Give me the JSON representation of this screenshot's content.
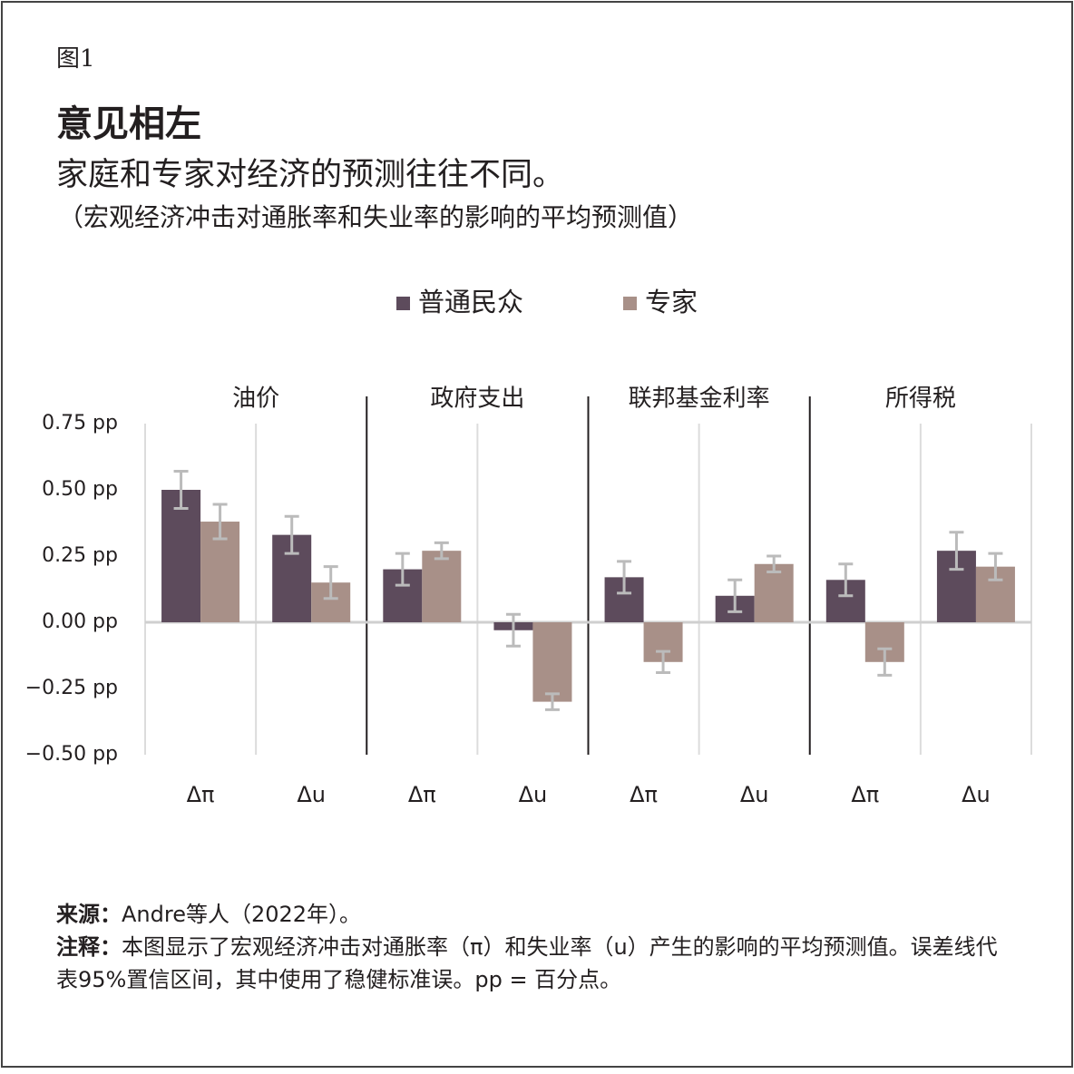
{
  "chart_data": {
    "type": "bar",
    "figure_label": "图1",
    "title": "意见相左",
    "subtitle": "家庭和专家对经济的预测往往不同。",
    "subtitle2": "（宏观经济冲击对通胀率和失业率的影响的平均预测值）",
    "groups": [
      "油价",
      "政府支出",
      "联邦基金利率",
      "所得税"
    ],
    "categories": [
      "Δπ",
      "Δu",
      "Δπ",
      "Δu",
      "Δπ",
      "Δu",
      "Δπ",
      "Δu"
    ],
    "series": [
      {
        "name": "普通民众",
        "color": "#5d4b5c",
        "values": [
          0.5,
          0.33,
          0.2,
          -0.03,
          0.17,
          0.1,
          0.16,
          0.27
        ],
        "errors": [
          0.07,
          0.07,
          0.06,
          0.06,
          0.06,
          0.06,
          0.06,
          0.07
        ]
      },
      {
        "name": "专家",
        "color": "#a89088",
        "values": [
          0.38,
          0.15,
          0.27,
          -0.3,
          -0.15,
          0.22,
          -0.15,
          0.21
        ],
        "errors": [
          0.065,
          0.06,
          0.03,
          0.03,
          0.04,
          0.03,
          0.05,
          0.05
        ]
      }
    ],
    "error_color": "#bbbbbb",
    "ylim": [
      -0.5,
      0.75
    ],
    "yticks": [
      {
        "value": -0.5,
        "label": "−0.50 pp"
      },
      {
        "value": -0.25,
        "label": "−0.25 pp"
      },
      {
        "value": 0,
        "label": "0.00 pp"
      },
      {
        "value": 0.25,
        "label": "0.25 pp"
      },
      {
        "value": 0.5,
        "label": "0.50 pp"
      },
      {
        "value": 0.75,
        "label": "0.75 pp"
      }
    ],
    "source": {
      "label": "来源：",
      "text": "Andre等人（2022年）。"
    },
    "note": {
      "label": "注释：",
      "text": "本图显示了宏观经济冲击对通胀率（π）和失业率（u）产生的影响的平均预测值。误差线代表95%置信区间，其中使用了稳健标准误。pp = 百分点。"
    }
  }
}
